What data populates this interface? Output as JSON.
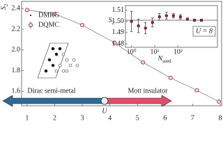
{
  "chart_data": [
    {
      "type": "scatter",
      "xlabel": "U",
      "ylabel": {
        "text": "S",
        "subscript": "2"
      },
      "xlim": [
        0.8,
        8.05
      ],
      "ylim": [
        1.46,
        2.47
      ],
      "xticks": [
        1,
        2,
        3,
        4,
        5,
        6,
        7,
        8
      ],
      "yticks": [
        1.6,
        1.8,
        {
          "value": 2,
          "label": "2.0"
        },
        2.2,
        2.4
      ],
      "legend": "upper left",
      "grid": false,
      "annotations": [
        "Dirac semi-metal",
        "Mott insulator"
      ],
      "series": [
        {
          "name": "DMRG",
          "color": "#000000",
          "x": [
            1,
            2,
            3,
            4.17,
            5.2,
            6.2,
            7.15,
            7.95
          ],
          "values": [
            2.387,
            2.35,
            2.24,
            2.07,
            1.88,
            1.73,
            1.61,
            1.5
          ]
        },
        {
          "name": "DQMC",
          "color": "#a0203a",
          "x": [
            1,
            2,
            3,
            4.17,
            5.2,
            6.2,
            7.15,
            7.95
          ],
          "values": [
            2.387,
            2.35,
            2.24,
            2.07,
            1.88,
            1.73,
            1.61,
            1.5
          ],
          "errors": [
            0.005,
            0.005,
            0.005,
            0.005,
            0.005,
            0.005,
            0.005,
            0.005
          ]
        }
      ]
    },
    {
      "type": "errorbar",
      "xlabel": {
        "text": "N",
        "subscript": "seed"
      },
      "ylabel": {
        "text": "S",
        "subscript": "2"
      },
      "annotation": "U = 8",
      "xscale": "log",
      "xlim": [
        0.55,
        5000
      ],
      "ylim": [
        1.477,
        1.514
      ],
      "xticks": [
        {
          "value": 1,
          "label": "10⁰"
        },
        {
          "value": 10,
          "label": "10¹"
        },
        {
          "value": 100,
          "label": "10²"
        }
      ],
      "yticks": [
        1.48,
        1.49,
        {
          "value": 1.5,
          "label": "1.50"
        },
        1.51
      ],
      "reference": 1.501,
      "series": [
        {
          "name": "DQMC",
          "color": "#a0203a",
          "x": [
            1,
            2,
            4,
            8,
            16,
            32,
            64,
            128,
            256,
            512,
            1024
          ],
          "values": [
            1.5,
            1.496,
            1.494,
            1.499,
            1.504,
            1.505,
            1.505,
            1.504,
            1.502,
            1.501,
            1.501
          ],
          "errors": [
            0.009,
            0.006,
            0.005,
            0.004,
            0.003,
            0.003,
            0.002,
            0.002,
            0.001,
            0.001,
            0.001
          ]
        }
      ]
    }
  ]
}
